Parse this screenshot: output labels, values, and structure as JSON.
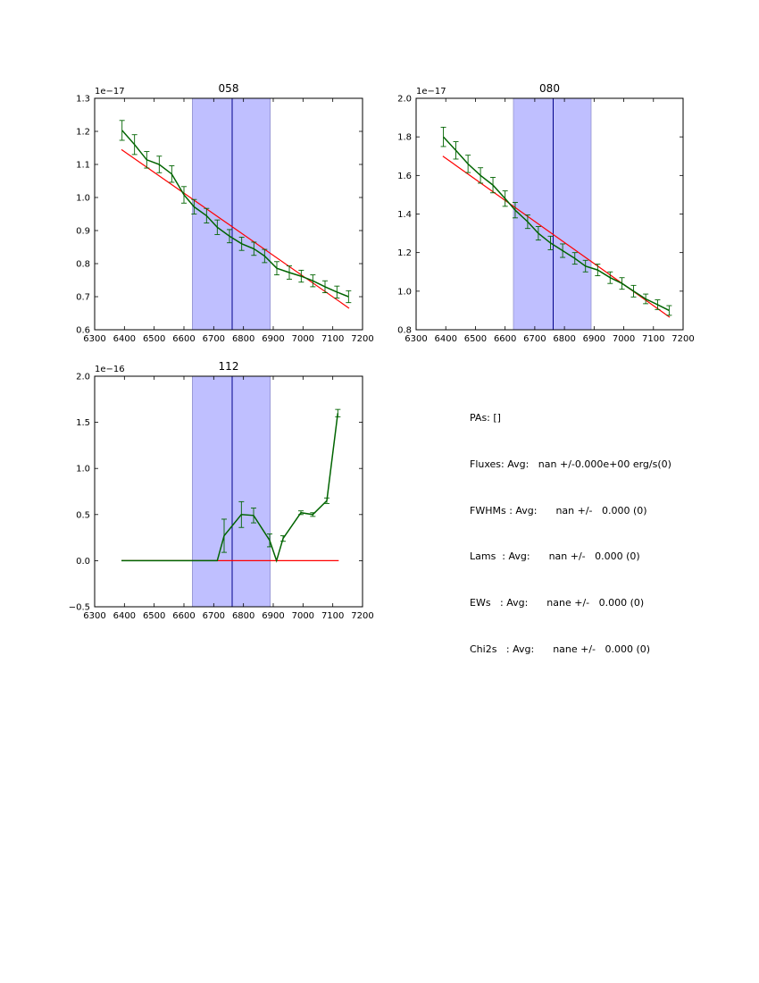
{
  "chart_data": [
    {
      "type": "line",
      "title": "058",
      "offset_label": "1e−17",
      "xlim": [
        6300,
        7200
      ],
      "ylim": [
        0.6,
        1.3
      ],
      "xticks": [
        6300,
        6400,
        6500,
        6600,
        6700,
        6800,
        6900,
        7000,
        7100,
        7200
      ],
      "xtick_labels": [
        "6300",
        "6400",
        "6500",
        "6600",
        "6700",
        "6800",
        "6900",
        "7000",
        "7100",
        "7200"
      ],
      "yticks": [
        0.6,
        0.7,
        0.8,
        0.9,
        1.0,
        1.1,
        1.2,
        1.3
      ],
      "ytick_labels": [
        "0.6",
        "0.7",
        "0.8",
        "0.9",
        "1.0",
        "1.1",
        "1.2",
        "1.3"
      ],
      "band": {
        "x0": 6628,
        "x1": 6890,
        "color": "#bfbfff"
      },
      "vline": {
        "x": 6762,
        "color": "#00008b"
      },
      "fit": {
        "x": [
          6390,
          7155
        ],
        "y": [
          1.145,
          0.665
        ],
        "color": "#ff0000"
      },
      "series": [
        {
          "name": "flux",
          "color": "#006400",
          "x": [
            6392,
            6434,
            6475,
            6517,
            6559,
            6600,
            6634,
            6676,
            6712,
            6753,
            6794,
            6835,
            6871,
            6912,
            6954,
            6994,
            7033,
            7074,
            7114,
            7153
          ],
          "y": [
            1.203,
            1.16,
            1.114,
            1.1,
            1.071,
            1.008,
            0.972,
            0.945,
            0.91,
            0.883,
            0.86,
            0.845,
            0.823,
            0.786,
            0.773,
            0.762,
            0.748,
            0.73,
            0.714,
            0.7
          ],
          "err": [
            0.03,
            0.03,
            0.025,
            0.025,
            0.025,
            0.025,
            0.022,
            0.022,
            0.022,
            0.02,
            0.02,
            0.02,
            0.02,
            0.02,
            0.02,
            0.018,
            0.018,
            0.018,
            0.018,
            0.018
          ]
        }
      ]
    },
    {
      "type": "line",
      "title": "080",
      "offset_label": "1e−17",
      "xlim": [
        6300,
        7200
      ],
      "ylim": [
        0.8,
        2.0
      ],
      "xticks": [
        6300,
        6400,
        6500,
        6600,
        6700,
        6800,
        6900,
        7000,
        7100,
        7200
      ],
      "xtick_labels": [
        "6300",
        "6400",
        "6500",
        "6600",
        "6700",
        "6800",
        "6900",
        "7000",
        "7100",
        "7200"
      ],
      "yticks": [
        0.8,
        1.0,
        1.2,
        1.4,
        1.6,
        1.8,
        2.0
      ],
      "ytick_labels": [
        "0.8",
        "1.0",
        "1.2",
        "1.4",
        "1.6",
        "1.8",
        "2.0"
      ],
      "band": {
        "x0": 6628,
        "x1": 6890,
        "color": "#bfbfff"
      },
      "vline": {
        "x": 6762,
        "color": "#00008b"
      },
      "fit": {
        "x": [
          6390,
          7155
        ],
        "y": [
          1.7,
          0.865
        ],
        "color": "#ff0000"
      },
      "series": [
        {
          "name": "flux",
          "color": "#006400",
          "x": [
            6392,
            6434,
            6475,
            6517,
            6559,
            6600,
            6634,
            6676,
            6712,
            6753,
            6794,
            6835,
            6871,
            6912,
            6954,
            6994,
            7033,
            7074,
            7114,
            7153
          ],
          "y": [
            1.8,
            1.73,
            1.66,
            1.6,
            1.55,
            1.48,
            1.42,
            1.36,
            1.3,
            1.25,
            1.21,
            1.17,
            1.13,
            1.11,
            1.07,
            1.04,
            1.0,
            0.96,
            0.93,
            0.9
          ],
          "err": [
            0.05,
            0.045,
            0.045,
            0.04,
            0.04,
            0.04,
            0.04,
            0.035,
            0.035,
            0.035,
            0.035,
            0.03,
            0.03,
            0.03,
            0.03,
            0.03,
            0.03,
            0.025,
            0.025,
            0.025
          ]
        }
      ]
    },
    {
      "type": "line",
      "title": "112",
      "offset_label": "1e−16",
      "xlim": [
        6300,
        7200
      ],
      "ylim": [
        -0.5,
        2.0
      ],
      "xticks": [
        6300,
        6400,
        6500,
        6600,
        6700,
        6800,
        6900,
        7000,
        7100,
        7200
      ],
      "xtick_labels": [
        "6300",
        "6400",
        "6500",
        "6600",
        "6700",
        "6800",
        "6900",
        "7000",
        "7100",
        "7200"
      ],
      "yticks": [
        -0.5,
        0.0,
        0.5,
        1.0,
        1.5,
        2.0
      ],
      "ytick_labels": [
        "−0.5",
        "0.0",
        "0.5",
        "1.0",
        "1.5",
        "2.0"
      ],
      "band": {
        "x0": 6628,
        "x1": 6890,
        "color": "#bfbfff"
      },
      "vline": {
        "x": 6762,
        "color": "#00008b"
      },
      "fit": {
        "x": [
          6390,
          7120
        ],
        "y": [
          0.0,
          0.0
        ],
        "color": "#ff0000"
      },
      "series": [
        {
          "name": "flux",
          "color": "#006400",
          "x": [
            6390,
            6430,
            6470,
            6510,
            6550,
            6590,
            6630,
            6670,
            6712,
            6735,
            6793,
            6834,
            6888,
            6911,
            6933,
            6993,
            7033,
            7080,
            7117
          ],
          "y": [
            0.0,
            0.0,
            0.0,
            0.0,
            0.0,
            0.0,
            0.0,
            0.0,
            0.0,
            0.27,
            0.5,
            0.49,
            0.22,
            0.0,
            0.24,
            0.52,
            0.5,
            0.65,
            1.6
          ],
          "err": [
            0,
            0,
            0,
            0,
            0,
            0,
            0,
            0,
            0,
            0.18,
            0.14,
            0.08,
            0.07,
            0,
            0.03,
            0.02,
            0.02,
            0.03,
            0.04
          ]
        }
      ]
    }
  ],
  "stats": [
    "PAs: []",
    "Fluxes: Avg:   nan +/-0.000e+00 erg/s(0)",
    "FWHMs : Avg:      nan +/-   0.000 (0)",
    "Lams  : Avg:      nan +/-   0.000 (0)",
    "EWs   : Avg:      nane +/-   0.000 (0)",
    "Chi2s   : Avg:      nane +/-   0.000 (0)"
  ]
}
